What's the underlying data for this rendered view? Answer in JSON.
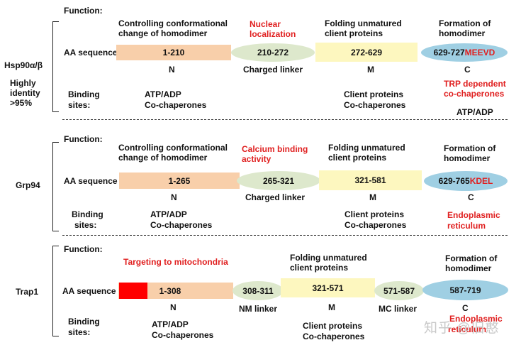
{
  "sections": [
    {
      "name": "Hsp90α/β",
      "identity": [
        "Highly",
        "identity",
        ">95%"
      ],
      "function_label": "Function:",
      "aa_label": "AA sequence",
      "binding_label": [
        "Binding",
        "sites:"
      ],
      "functions": {
        "n": [
          "Controlling conformational",
          "change of homodimer"
        ],
        "linker": [
          "Nuclear",
          "localization"
        ],
        "m": [
          "Folding unmatured",
          "client proteins"
        ],
        "c": [
          "Formation of",
          "homodimer"
        ]
      },
      "segments": {
        "n": "1-210",
        "linker": "210-272",
        "m": "272-629",
        "c_range": "629-727",
        "c_motif": "MEEVD"
      },
      "domain_labels": {
        "n": "N",
        "linker": "Charged linker",
        "m": "M",
        "c": "C"
      },
      "binding": {
        "n": [
          "ATP/ADP",
          "Co-chaperones"
        ],
        "m": [
          "Client proteins",
          "Co-chaperones"
        ],
        "c_red": [
          "TRP dependent",
          "co-chaperones"
        ],
        "c_black": "ATP/ADP"
      }
    },
    {
      "name": "Grp94",
      "function_label": "Function:",
      "aa_label": "AA sequence",
      "binding_label": [
        "Binding",
        "sites:"
      ],
      "functions": {
        "n": [
          "Controlling conformational",
          "change of homodimer"
        ],
        "linker": [
          "Calcium binding",
          "activity"
        ],
        "m": [
          "Folding unmatured",
          "client proteins"
        ],
        "c": [
          "Formation of",
          "homodimer"
        ]
      },
      "segments": {
        "n": "1-265",
        "linker": "265-321",
        "m": "321-581",
        "c_range": "629-765",
        "c_motif": "KDEL"
      },
      "domain_labels": {
        "n": "N",
        "linker": "Charged linker",
        "m": "M",
        "c": "C"
      },
      "binding": {
        "n": [
          "ATP/ADP",
          "Co-chaperones"
        ],
        "m": [
          "Client proteins",
          "Co-chaperones"
        ],
        "c_red": [
          "Endoplasmic",
          "reticulum"
        ]
      }
    },
    {
      "name": "Trap1",
      "function_label": "Function:",
      "aa_label": "AA sequence",
      "binding_label": [
        "Binding",
        "sites:"
      ],
      "functions": {
        "n_red": "Targeting to mitochondria",
        "m": [
          "Folding unmatured",
          "client proteins"
        ],
        "c": [
          "Formation of",
          "homodimer"
        ]
      },
      "segments": {
        "n": "1-308",
        "nm": "308-311",
        "m": "321-571",
        "mc": "571-587",
        "c": "587-719"
      },
      "domain_labels": {
        "n": "N",
        "nm": "NM linker",
        "m": "M",
        "mc": "MC linker",
        "c": "C"
      },
      "binding": {
        "n": [
          "ATP/ADP",
          "Co-chaperones"
        ],
        "m": [
          "Client proteins",
          "Co-chaperones"
        ],
        "c_red": [
          "Endoplasmic",
          "reticulum"
        ]
      }
    }
  ],
  "watermark": "知乎 @旧憨",
  "colors": {
    "n_domain": "#f8cfaa",
    "linker": "#dde8cc",
    "m_domain": "#fdf7bf",
    "c_domain": "#9fcfe3",
    "highlight": "#e02020",
    "mito_target": "#ff0000"
  }
}
